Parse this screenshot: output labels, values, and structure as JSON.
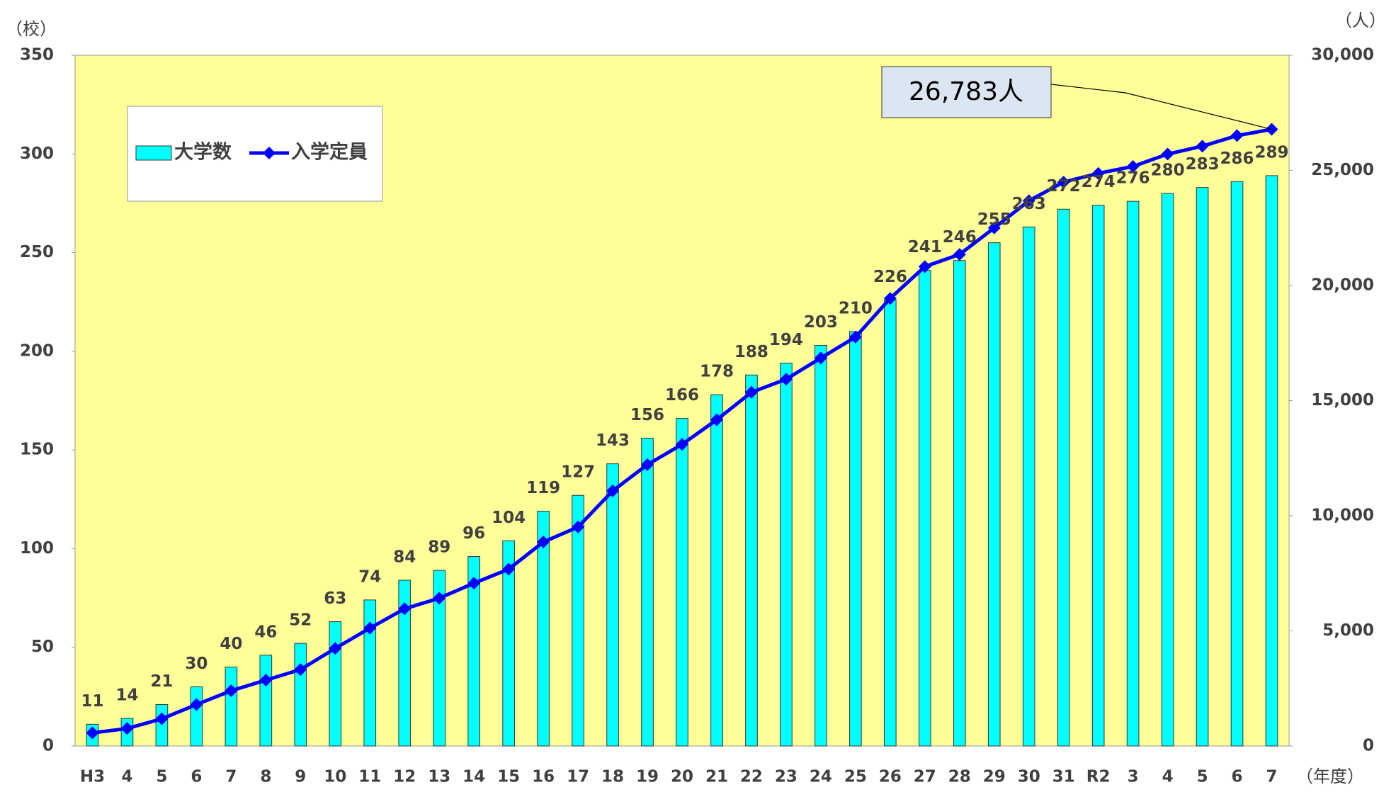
{
  "chart_data": {
    "type": "bar_line",
    "categories": [
      "H3",
      "4",
      "5",
      "6",
      "7",
      "8",
      "9",
      "10",
      "11",
      "12",
      "13",
      "14",
      "15",
      "16",
      "17",
      "18",
      "19",
      "20",
      "21",
      "22",
      "23",
      "24",
      "25",
      "26",
      "27",
      "28",
      "29",
      "30",
      "31",
      "R2",
      "3",
      "4",
      "5",
      "6",
      "7"
    ],
    "series": [
      {
        "name": "大学数",
        "color": "#00ffff",
        "values": [
          11,
          14,
          21,
          30,
          40,
          46,
          52,
          63,
          74,
          84,
          89,
          96,
          104,
          119,
          127,
          143,
          156,
          166,
          178,
          188,
          194,
          203,
          210,
          226,
          241,
          246,
          255,
          263,
          272,
          274,
          276,
          280,
          283,
          286,
          289
        ]
      },
      {
        "name": "入学定員",
        "color": "#0000ff",
        "axis": "y2",
        "values": [
          570,
          760,
          1180,
          1800,
          2400,
          2860,
          3320,
          4240,
          5120,
          5960,
          6420,
          7070,
          7680,
          8860,
          9510,
          11080,
          12220,
          13100,
          14170,
          15360,
          15930,
          16850,
          17760,
          19440,
          20820,
          21350,
          22500,
          23680,
          24490,
          24870,
          25170,
          25710,
          26050,
          26510,
          26783
        ]
      }
    ],
    "ylabel": "（校）",
    "y2label": "（人）",
    "xlabel": "（年度）",
    "annotation": "26,783人",
    "ylim": [
      0,
      350
    ],
    "yticks": [
      0,
      50,
      100,
      150,
      200,
      250,
      300,
      350
    ],
    "y2lim": [
      0,
      30000
    ],
    "y2ticks": [
      0,
      {
        "value": 5000,
        "label": "5,000"
      },
      {
        "value": 10000,
        "label": "10,000"
      },
      {
        "value": 15000,
        "label": "15,000"
      },
      {
        "value": 20000,
        "label": "20,000"
      },
      {
        "value": 25000,
        "label": "25,000"
      },
      {
        "value": 30000,
        "label": "30,000"
      }
    ],
    "plot_background": "#ffff99",
    "legend": "upper left"
  }
}
